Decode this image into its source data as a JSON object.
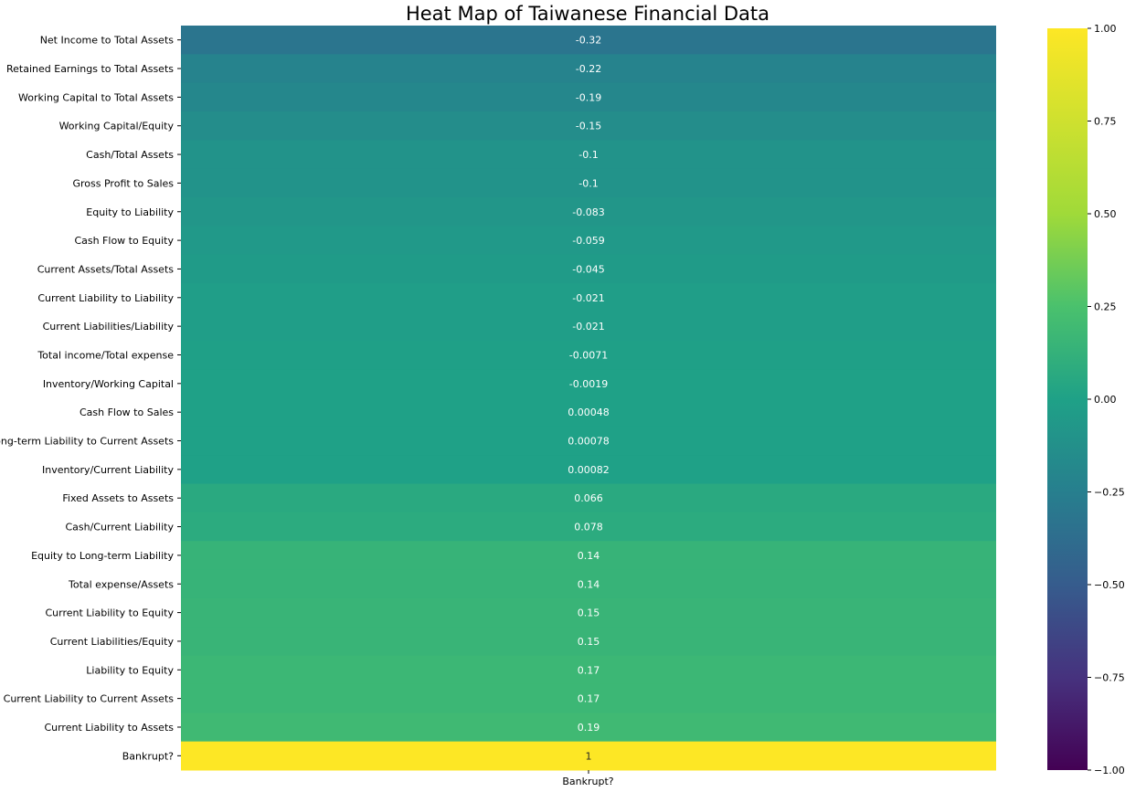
{
  "chart_data": {
    "type": "heatmap",
    "title": "Heat Map of Taiwanese Financial Data",
    "columns": [
      "Bankrupt?"
    ],
    "rows": [
      "Net Income to Total Assets",
      "Retained Earnings to Total Assets",
      "Working Capital to Total Assets",
      "Working Capital/Equity",
      "Cash/Total Assets",
      "Gross Profit to Sales",
      "Equity to Liability",
      "Cash Flow to Equity",
      "Current Assets/Total Assets",
      "Current Liability to Liability",
      "Current Liabilities/Liability",
      "Total income/Total expense",
      "Inventory/Working Capital",
      "Cash Flow to Sales",
      "Long-term Liability to Current Assets",
      "Inventory/Current Liability",
      "Fixed Assets to Assets",
      "Cash/Current Liability",
      "Equity to Long-term Liability",
      "Total expense/Assets",
      "Current Liability to Equity",
      "Current Liabilities/Equity",
      "Liability to Equity",
      "Current Liability to Current Assets",
      "Current Liability to Assets",
      "Bankrupt?"
    ],
    "values": [
      -0.32,
      -0.22,
      -0.19,
      -0.15,
      -0.1,
      -0.1,
      -0.083,
      -0.059,
      -0.045,
      -0.021,
      -0.021,
      -0.0071,
      -0.0019,
      0.00048,
      0.00078,
      0.00082,
      0.066,
      0.078,
      0.14,
      0.14,
      0.15,
      0.15,
      0.17,
      0.17,
      0.19,
      1
    ],
    "value_labels": [
      "-0.32",
      "-0.22",
      "-0.19",
      "-0.15",
      "-0.1",
      "-0.1",
      "-0.083",
      "-0.059",
      "-0.045",
      "-0.021",
      "-0.021",
      "-0.0071",
      "-0.0019",
      "0.00048",
      "0.00078",
      "0.00082",
      "0.066",
      "0.078",
      "0.14",
      "0.14",
      "0.15",
      "0.15",
      "0.17",
      "0.17",
      "0.19",
      "1"
    ],
    "colormap": "viridis",
    "vmin": -1,
    "vmax": 1,
    "colorbar_ticks": [
      1.0,
      0.75,
      0.5,
      0.25,
      0.0,
      -0.25,
      -0.5,
      -0.75,
      -1.0
    ],
    "colorbar_tick_labels": [
      "1.00",
      "0.75",
      "0.50",
      "0.25",
      "0.00",
      "−0.25",
      "−0.50",
      "−0.75",
      "−1.00"
    ],
    "cell_text_colors": {
      "on_dark": "#ffffff",
      "on_light": "#262626"
    }
  }
}
